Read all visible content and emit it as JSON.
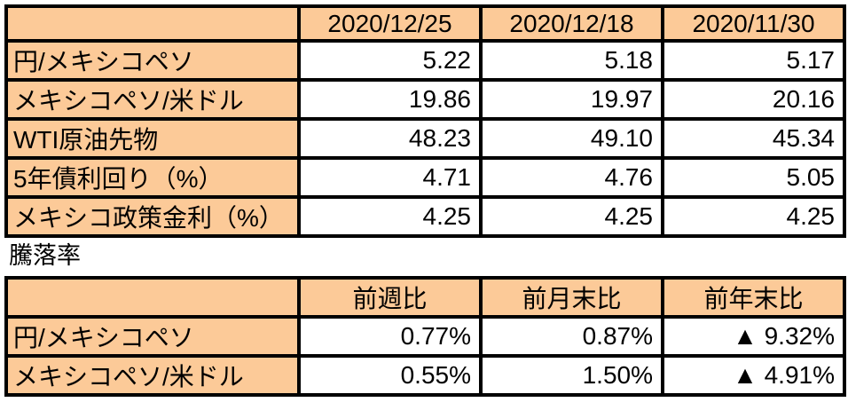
{
  "colors": {
    "header_fill": "#FCCA98",
    "border": "#000000",
    "cell_bg": "#FFFFFF",
    "text": "#000000"
  },
  "section_label": "騰落率",
  "rates_table": {
    "columns": [
      "",
      "2020/12/25",
      "2020/12/18",
      "2020/11/30"
    ],
    "rows": [
      {
        "label": "円/メキシコペソ",
        "values": [
          "5.22",
          "5.18",
          "5.17"
        ]
      },
      {
        "label": "メキシコペソ/米ドル",
        "values": [
          "19.86",
          "19.97",
          "20.16"
        ]
      },
      {
        "label": "WTI原油先物",
        "values": [
          "48.23",
          "49.10",
          "45.34"
        ]
      },
      {
        "label": "5年債利回り（%）",
        "values": [
          "4.71",
          "4.76",
          "5.05"
        ]
      },
      {
        "label": "メキシコ政策金利（%）",
        "values": [
          "4.25",
          "4.25",
          "4.25"
        ]
      }
    ]
  },
  "change_table": {
    "columns": [
      "",
      "前週比",
      "前月末比",
      "前年末比"
    ],
    "rows": [
      {
        "label": "円/メキシコペソ",
        "values": [
          "0.77%",
          "0.87%",
          "▲ 9.32%"
        ]
      },
      {
        "label": "メキシコペソ/米ドル",
        "values": [
          "0.55%",
          "1.50%",
          "▲ 4.91%"
        ]
      }
    ]
  },
  "chart_data": [
    {
      "type": "table",
      "title": "",
      "columns": [
        "",
        "2020/12/25",
        "2020/12/18",
        "2020/11/30"
      ],
      "rows": [
        [
          "円/メキシコペソ",
          5.22,
          5.18,
          5.17
        ],
        [
          "メキシコペソ/米ドル",
          19.86,
          19.97,
          20.16
        ],
        [
          "WTI原油先物",
          48.23,
          49.1,
          45.34
        ],
        [
          "5年債利回り（%）",
          4.71,
          4.76,
          5.05
        ],
        [
          "メキシコ政策金利（%）",
          4.25,
          4.25,
          4.25
        ]
      ]
    },
    {
      "type": "table",
      "title": "騰落率",
      "columns": [
        "",
        "前週比",
        "前月末比",
        "前年末比"
      ],
      "rows": [
        [
          "円/メキシコペソ",
          "0.77%",
          "0.87%",
          "▲ 9.32%"
        ],
        [
          "メキシコペソ/米ドル",
          "0.55%",
          "1.50%",
          "▲ 4.91%"
        ]
      ]
    }
  ]
}
